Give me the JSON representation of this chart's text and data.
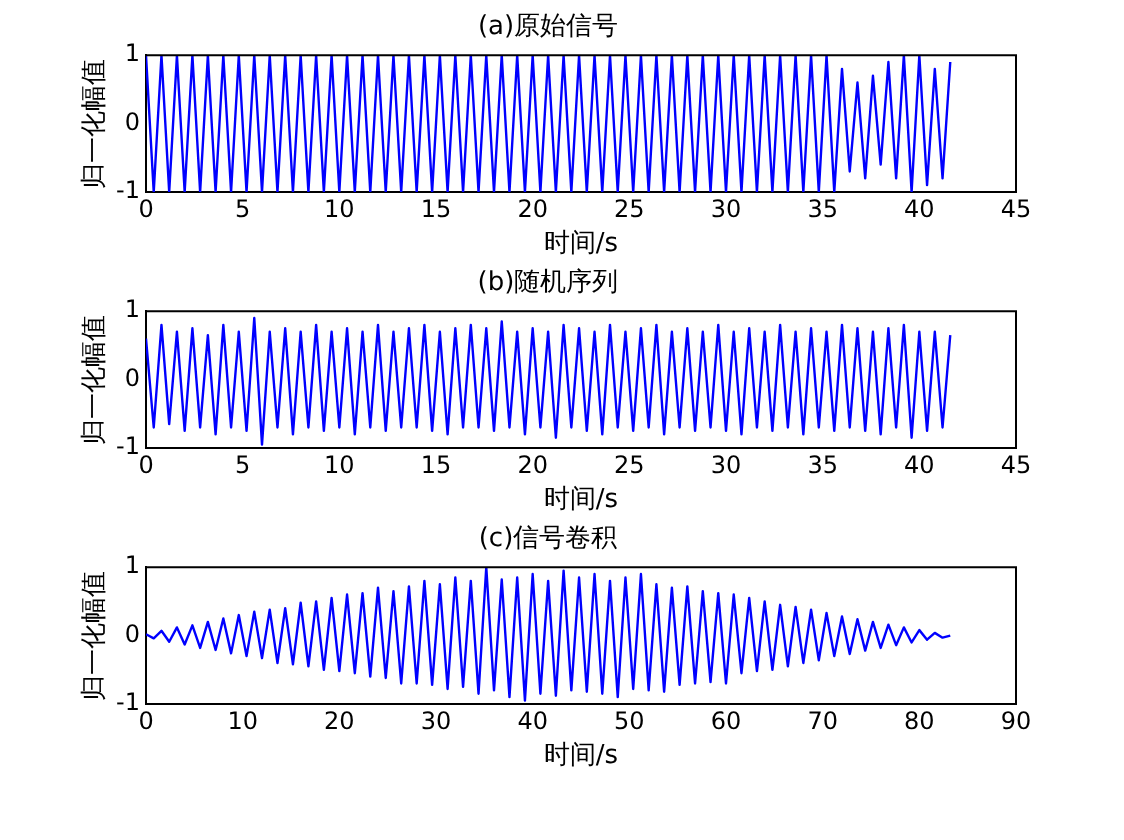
{
  "chart_data": [
    {
      "type": "line",
      "title": "(a)原始信号",
      "xlabel": "时间/s",
      "ylabel": "归一化幅值",
      "xlim": [
        0,
        45
      ],
      "ylim": [
        -1,
        1
      ],
      "xticks": [
        0,
        5,
        10,
        15,
        20,
        25,
        30,
        35,
        40,
        45
      ],
      "yticks": [
        -1,
        0,
        1
      ],
      "legend": false,
      "x": [
        0,
        0.4,
        0.8,
        1.2,
        1.6,
        2,
        2.4,
        2.8,
        3.2,
        3.6,
        4,
        4.4,
        4.8,
        5.2,
        5.6,
        6,
        6.4,
        6.8,
        7.2,
        7.6,
        8,
        8.4,
        8.8,
        9.2,
        9.6,
        10,
        10.4,
        10.8,
        11.2,
        11.6,
        12,
        12.4,
        12.8,
        13.2,
        13.6,
        14,
        14.4,
        14.8,
        15.2,
        15.6,
        16,
        16.4,
        16.8,
        17.2,
        17.6,
        18,
        18.4,
        18.8,
        19.2,
        19.6,
        20,
        20.4,
        20.8,
        21.2,
        21.6,
        22,
        22.4,
        22.8,
        23.2,
        23.6,
        24,
        24.4,
        24.8,
        25.2,
        25.6,
        26,
        26.4,
        26.8,
        27.2,
        27.6,
        28,
        28.4,
        28.8,
        29.2,
        29.6,
        30,
        30.4,
        30.8,
        31.2,
        31.6,
        32,
        32.4,
        32.8,
        33.2,
        33.6,
        34,
        34.4,
        34.8,
        35.2,
        35.6,
        36,
        36.4,
        36.8,
        37.2,
        37.6,
        38,
        38.4,
        38.8,
        39.2,
        39.6,
        40,
        40.4,
        40.8,
        41.2,
        41.6
      ],
      "series": [
        {
          "color": "#0000ff",
          "values": [
            1,
            -1,
            1,
            -1,
            1,
            -1,
            1,
            -1,
            1,
            -1,
            1,
            -1,
            1,
            -1,
            1,
            -1,
            1,
            -1,
            1,
            -1,
            1,
            -1,
            1,
            -1,
            1,
            -1,
            1,
            -1,
            1,
            -1,
            1,
            -1,
            1,
            -1,
            1,
            -1,
            1,
            -1,
            1,
            -1,
            1,
            -1,
            1,
            -1,
            1,
            -1,
            1,
            -1,
            1,
            -1,
            1,
            -1,
            1,
            -1,
            1,
            -1,
            1,
            -1,
            1,
            -1,
            1,
            -1,
            1,
            -1,
            1,
            -1,
            1,
            -1,
            1,
            -1,
            1,
            -1,
            1,
            -1,
            1,
            -1,
            1,
            -1,
            1,
            -1,
            1,
            -1,
            1,
            -1,
            1,
            -1,
            1,
            -1,
            1,
            -1,
            0.8,
            -0.7,
            0.6,
            -0.8,
            0.7,
            -0.6,
            0.9,
            -0.8,
            1,
            -1,
            1,
            -0.9,
            0.8,
            -0.8,
            0.9
          ]
        }
      ]
    },
    {
      "type": "line",
      "title": "(b)随机序列",
      "xlabel": "时间/s",
      "ylabel": "归一化幅值",
      "xlim": [
        0,
        45
      ],
      "ylim": [
        -1,
        1
      ],
      "xticks": [
        0,
        5,
        10,
        15,
        20,
        25,
        30,
        35,
        40,
        45
      ],
      "yticks": [
        -1,
        0,
        1
      ],
      "legend": false,
      "x": [
        0,
        0.4,
        0.8,
        1.2,
        1.6,
        2,
        2.4,
        2.8,
        3.2,
        3.6,
        4,
        4.4,
        4.8,
        5.2,
        5.6,
        6,
        6.4,
        6.8,
        7.2,
        7.6,
        8,
        8.4,
        8.8,
        9.2,
        9.6,
        10,
        10.4,
        10.8,
        11.2,
        11.6,
        12,
        12.4,
        12.8,
        13.2,
        13.6,
        14,
        14.4,
        14.8,
        15.2,
        15.6,
        16,
        16.4,
        16.8,
        17.2,
        17.6,
        18,
        18.4,
        18.8,
        19.2,
        19.6,
        20,
        20.4,
        20.8,
        21.2,
        21.6,
        22,
        22.4,
        22.8,
        23.2,
        23.6,
        24,
        24.4,
        24.8,
        25.2,
        25.6,
        26,
        26.4,
        26.8,
        27.2,
        27.6,
        28,
        28.4,
        28.8,
        29.2,
        29.6,
        30,
        30.4,
        30.8,
        31.2,
        31.6,
        32,
        32.4,
        32.8,
        33.2,
        33.6,
        34,
        34.4,
        34.8,
        35.2,
        35.6,
        36,
        36.4,
        36.8,
        37.2,
        37.6,
        38,
        38.4,
        38.8,
        39.2,
        39.6,
        40,
        40.4,
        40.8,
        41.2,
        41.6
      ],
      "series": [
        {
          "color": "#0000ff",
          "values": [
            0.6,
            -0.7,
            0.8,
            -0.65,
            0.7,
            -0.75,
            0.75,
            -0.7,
            0.65,
            -0.8,
            0.8,
            -0.7,
            0.7,
            -0.75,
            0.9,
            -0.95,
            0.7,
            -0.7,
            0.75,
            -0.8,
            0.7,
            -0.7,
            0.8,
            -0.75,
            0.7,
            -0.7,
            0.75,
            -0.8,
            0.7,
            -0.7,
            0.8,
            -0.75,
            0.7,
            -0.7,
            0.75,
            -0.7,
            0.8,
            -0.75,
            0.7,
            -0.8,
            0.75,
            -0.7,
            0.8,
            -0.7,
            0.75,
            -0.75,
            0.85,
            -0.7,
            0.7,
            -0.8,
            0.75,
            -0.7,
            0.7,
            -0.85,
            0.8,
            -0.7,
            0.75,
            -0.75,
            0.7,
            -0.8,
            0.8,
            -0.7,
            0.7,
            -0.75,
            0.75,
            -0.7,
            0.8,
            -0.8,
            0.7,
            -0.7,
            0.75,
            -0.75,
            0.7,
            -0.7,
            0.8,
            -0.75,
            0.7,
            -0.8,
            0.75,
            -0.7,
            0.7,
            -0.75,
            0.8,
            -0.7,
            0.7,
            -0.8,
            0.75,
            -0.7,
            0.7,
            -0.75,
            0.8,
            -0.7,
            0.75,
            -0.75,
            0.7,
            -0.8,
            0.75,
            -0.7,
            0.8,
            -0.85,
            0.7,
            -0.75,
            0.7,
            -0.7,
            0.65
          ]
        }
      ]
    },
    {
      "type": "line",
      "title": "(c)信号卷积",
      "xlabel": "时间/s",
      "ylabel": "归一化幅值",
      "xlim": [
        0,
        90
      ],
      "ylim": [
        -1,
        1
      ],
      "xticks": [
        0,
        10,
        20,
        30,
        40,
        50,
        60,
        70,
        80,
        90
      ],
      "yticks": [
        -1,
        0,
        1
      ],
      "legend": false,
      "x": [
        0,
        0.8,
        1.6,
        2.4,
        3.2,
        4,
        4.8,
        5.6,
        6.4,
        7.2,
        8,
        8.8,
        9.6,
        10.4,
        11.2,
        12,
        12.8,
        13.6,
        14.4,
        15.2,
        16,
        16.8,
        17.6,
        18.4,
        19.2,
        20,
        20.8,
        21.6,
        22.4,
        23.2,
        24,
        24.8,
        25.6,
        26.4,
        27.2,
        28,
        28.8,
        29.6,
        30.4,
        31.2,
        32,
        32.8,
        33.6,
        34.4,
        35.2,
        36,
        36.8,
        37.6,
        38.4,
        39.2,
        40,
        40.8,
        41.6,
        42.4,
        43.2,
        44,
        44.8,
        45.6,
        46.4,
        47.2,
        48,
        48.8,
        49.6,
        50.4,
        51.2,
        52,
        52.8,
        53.6,
        54.4,
        55.2,
        56,
        56.8,
        57.6,
        58.4,
        59.2,
        60,
        60.8,
        61.6,
        62.4,
        63.2,
        64,
        64.8,
        65.6,
        66.4,
        67.2,
        68,
        68.8,
        69.6,
        70.4,
        71.2,
        72,
        72.8,
        73.6,
        74.4,
        75.2,
        76,
        76.8,
        77.6,
        78.4,
        79.2,
        80,
        80.8,
        81.6,
        82.4,
        83.2
      ],
      "series": [
        {
          "color": "#0000ff",
          "values": [
            0.02,
            -0.04,
            0.07,
            -0.09,
            0.12,
            -0.13,
            0.15,
            -0.18,
            0.2,
            -0.21,
            0.25,
            -0.26,
            0.3,
            -0.3,
            0.35,
            -0.33,
            0.38,
            -0.4,
            0.4,
            -0.42,
            0.48,
            -0.45,
            0.5,
            -0.5,
            0.55,
            -0.52,
            0.6,
            -0.55,
            0.62,
            -0.6,
            0.7,
            -0.62,
            0.65,
            -0.7,
            0.72,
            -0.7,
            0.8,
            -0.72,
            0.75,
            -0.78,
            0.85,
            -0.75,
            0.8,
            -0.85,
            1,
            -0.8,
            0.82,
            -0.9,
            0.85,
            -0.95,
            0.9,
            -0.85,
            0.8,
            -0.88,
            0.95,
            -0.8,
            0.85,
            -0.82,
            0.9,
            -0.85,
            0.8,
            -0.9,
            0.85,
            -0.78,
            0.9,
            -0.8,
            0.75,
            -0.82,
            0.7,
            -0.72,
            0.72,
            -0.7,
            0.65,
            -0.68,
            0.62,
            -0.7,
            0.6,
            -0.55,
            0.55,
            -0.52,
            0.5,
            -0.5,
            0.45,
            -0.45,
            0.42,
            -0.4,
            0.38,
            -0.36,
            0.33,
            -0.3,
            0.28,
            -0.27,
            0.24,
            -0.22,
            0.2,
            -0.18,
            0.16,
            -0.14,
            0.12,
            -0.1,
            0.08,
            -0.06,
            0.04,
            -0.03,
            0
          ]
        }
      ]
    }
  ]
}
